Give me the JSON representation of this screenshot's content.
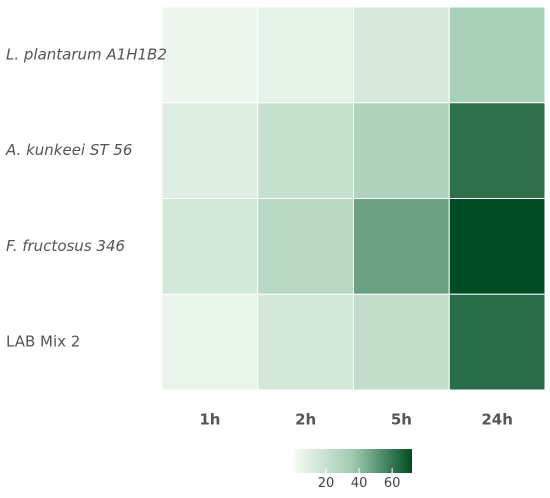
{
  "chart_data": {
    "type": "heatmap",
    "rows": [
      "L. plantarum A1H1B2",
      "A. kunkeei ST 56",
      "F. fructosus 346",
      "LAB Mix 2"
    ],
    "row_italic": [
      true,
      true,
      true,
      false
    ],
    "columns": [
      "1h",
      "2h",
      "5h",
      "24h"
    ],
    "values": [
      [
        4,
        8,
        14,
        33
      ],
      [
        10,
        20,
        30,
        62
      ],
      [
        15,
        26,
        48,
        72
      ],
      [
        6,
        15,
        22,
        63
      ]
    ],
    "colorbar": {
      "min": 0,
      "max": 72,
      "ticks": [
        20,
        40,
        60
      ],
      "colors": {
        "low": "#f7fcf5",
        "mid": "#a1cbb1",
        "high": "#004d23"
      }
    },
    "cell_border_color": "#ffffff",
    "label_color": "#555555",
    "grid": false
  }
}
